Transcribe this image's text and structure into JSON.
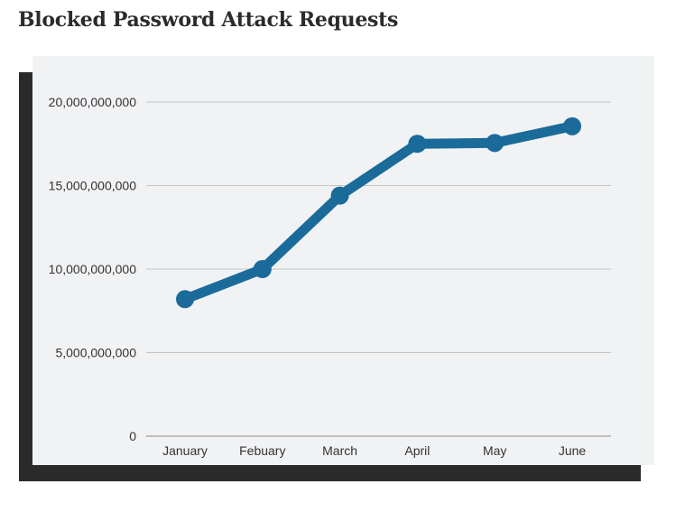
{
  "page": {
    "title": "Blocked Password Attack Requests"
  },
  "colors": {
    "line": "#1a6b9a",
    "grid": "#c4c4c4",
    "panel_background": "#f1f2f4",
    "shadow": "#2a2a2a"
  },
  "chart_data": {
    "type": "line",
    "title": "",
    "xlabel": "",
    "ylabel": "",
    "categories": [
      "January",
      "Febuary",
      "March",
      "April",
      "May",
      "June"
    ],
    "series": [
      {
        "values": [
          8200000000,
          10000000000,
          14400000000,
          17500000000,
          17550000000,
          18550000000
        ]
      }
    ],
    "ylim": [
      0,
      20000000000
    ],
    "yticks": [
      0,
      5000000000,
      10000000000,
      15000000000,
      20000000000
    ],
    "ytick_labels": [
      "0",
      "5,000,000,000",
      "10,000,000,000",
      "15,000,000,000",
      "20,000,000,000"
    ],
    "grid": true,
    "legend": "none"
  }
}
